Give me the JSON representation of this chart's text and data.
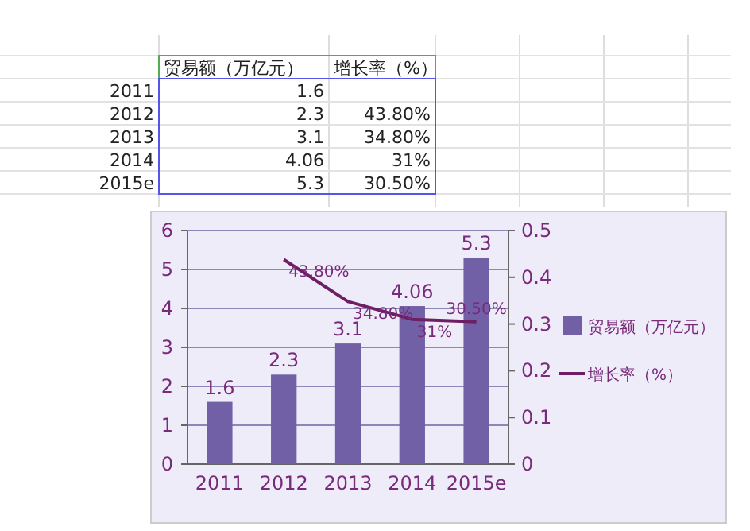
{
  "chart_data": {
    "type": "bar",
    "categories": [
      "2011",
      "2012",
      "2013",
      "2014",
      "2015e"
    ],
    "series": [
      {
        "name": "贸易额（万亿元）",
        "color": "#7260a6",
        "values": [
          1.6,
          2.3,
          3.1,
          4.06,
          5.3
        ],
        "value_labels": [
          "1.6",
          "2.3",
          "3.1",
          "4.06",
          "5.3"
        ]
      },
      {
        "name": "增长率（%）",
        "type": "line",
        "axis": "y2",
        "color": "#6e1f63",
        "values": [
          null,
          0.438,
          0.348,
          0.31,
          0.305
        ],
        "value_labels": [
          null,
          "43.80%",
          "34.80%",
          "31%",
          "30.50%"
        ]
      }
    ],
    "ylim": [
      0,
      6
    ],
    "yticks": [
      0,
      1,
      2,
      3,
      4,
      5,
      6
    ],
    "y2lim": [
      0,
      0.5
    ],
    "y2ticks": [
      0,
      0.1,
      0.2,
      0.3,
      0.4,
      0.5
    ],
    "grid": "y",
    "legend": "right",
    "marker": "none",
    "line_style": "solid"
  }
}
